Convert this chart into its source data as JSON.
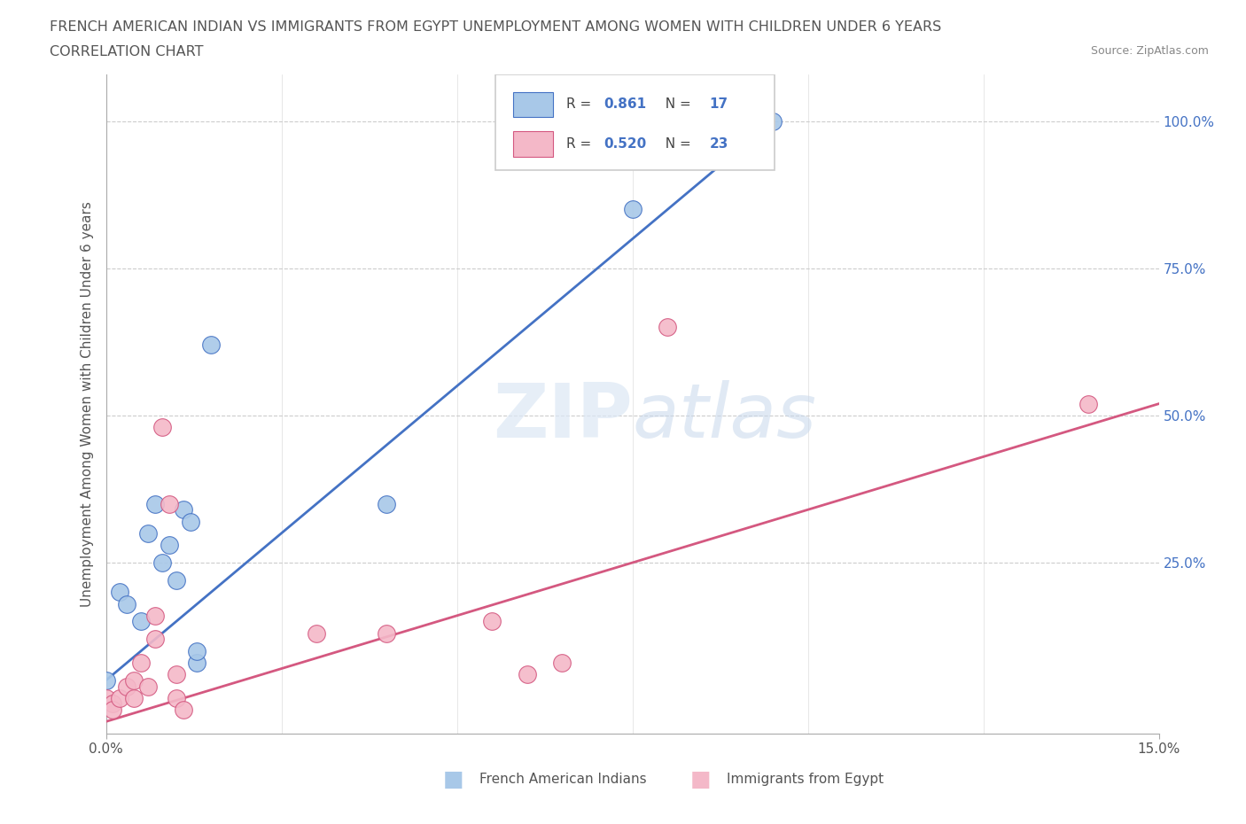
{
  "title_line1": "FRENCH AMERICAN INDIAN VS IMMIGRANTS FROM EGYPT UNEMPLOYMENT AMONG WOMEN WITH CHILDREN UNDER 6 YEARS",
  "title_line2": "CORRELATION CHART",
  "source": "Source: ZipAtlas.com",
  "ylabel": "Unemployment Among Women with Children Under 6 years",
  "watermark": "ZIPatlas",
  "blue_label": "French American Indians",
  "pink_label": "Immigrants from Egypt",
  "blue_R": "0.861",
  "blue_N": "17",
  "pink_R": "0.520",
  "pink_N": "23",
  "right_yticks": [
    "100.0%",
    "75.0%",
    "50.0%",
    "25.0%"
  ],
  "right_ytick_vals": [
    1.0,
    0.75,
    0.5,
    0.25
  ],
  "blue_scatter": [
    [
      0.0,
      0.05
    ],
    [
      0.002,
      0.2
    ],
    [
      0.003,
      0.18
    ],
    [
      0.005,
      0.15
    ],
    [
      0.006,
      0.3
    ],
    [
      0.007,
      0.35
    ],
    [
      0.008,
      0.25
    ],
    [
      0.009,
      0.28
    ],
    [
      0.01,
      0.22
    ],
    [
      0.011,
      0.34
    ],
    [
      0.012,
      0.32
    ],
    [
      0.013,
      0.08
    ],
    [
      0.013,
      0.1
    ],
    [
      0.015,
      0.62
    ],
    [
      0.04,
      0.35
    ],
    [
      0.075,
      0.85
    ],
    [
      0.095,
      1.0
    ]
  ],
  "pink_scatter": [
    [
      0.0,
      0.02
    ],
    [
      0.001,
      0.01
    ],
    [
      0.001,
      0.0
    ],
    [
      0.002,
      0.02
    ],
    [
      0.003,
      0.04
    ],
    [
      0.004,
      0.02
    ],
    [
      0.004,
      0.05
    ],
    [
      0.005,
      0.08
    ],
    [
      0.006,
      0.04
    ],
    [
      0.007,
      0.12
    ],
    [
      0.007,
      0.16
    ],
    [
      0.008,
      0.48
    ],
    [
      0.009,
      0.35
    ],
    [
      0.01,
      0.02
    ],
    [
      0.01,
      0.06
    ],
    [
      0.011,
      0.0
    ],
    [
      0.03,
      0.13
    ],
    [
      0.04,
      0.13
    ],
    [
      0.055,
      0.15
    ],
    [
      0.06,
      0.06
    ],
    [
      0.065,
      0.08
    ],
    [
      0.08,
      0.65
    ],
    [
      0.14,
      0.52
    ]
  ],
  "blue_line_pts": [
    [
      0.0,
      0.05
    ],
    [
      0.095,
      1.0
    ]
  ],
  "pink_line_pts": [
    [
      0.0,
      -0.02
    ],
    [
      0.15,
      0.52
    ]
  ],
  "xlim": [
    0.0,
    0.15
  ],
  "ylim": [
    -0.04,
    1.08
  ],
  "blue_color": "#a8c8e8",
  "blue_line_color": "#4472c4",
  "pink_color": "#f4b8c8",
  "pink_line_color": "#d45880",
  "grid_color": "#cccccc",
  "right_tick_color": "#4472c4",
  "title_color": "#555555",
  "source_color": "#888888",
  "bg_color": "#ffffff"
}
